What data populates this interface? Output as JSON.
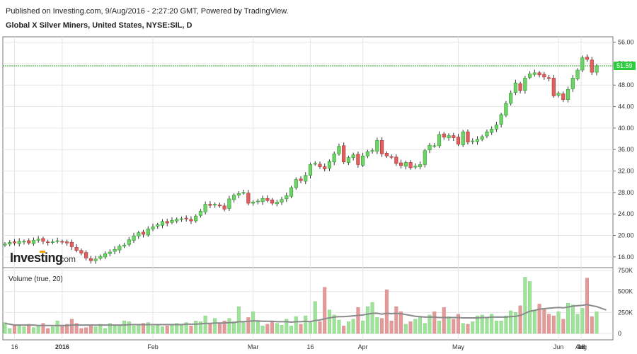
{
  "header": {
    "published": "Published on Investing.com, 9/Aug/2016 - 2:27:20 GMT, Powered by TradingView.",
    "symbol": "Global X Silver Miners, United States, NYSE:SIL, D"
  },
  "logo": {
    "brand": "Investing",
    "suffix": ".com"
  },
  "volume_panel": {
    "label": "Volume (true, 20)"
  },
  "last_price_badge": "51.59",
  "colors": {
    "up": "#6fd36a",
    "down": "#e06060",
    "up_vol": "#9ee39a",
    "down_vol": "#e59a9a",
    "ma": "#8a8a8a",
    "last_line": "#22aa22",
    "badge": "#2ecc40",
    "grid": "#e6e6e6"
  },
  "chart_data": [
    {
      "type": "candlestick",
      "title": "Global X Silver Miners, United States, NYSE:SIL, D",
      "x_tick_labels": [
        "16",
        "2016",
        "Feb",
        "Mar",
        "16",
        "Apr",
        "May",
        "Jun",
        "16",
        "Jul",
        "Aug"
      ],
      "y_ticks": [
        16,
        20,
        24,
        28,
        32,
        36,
        40,
        44,
        48,
        52,
        56
      ],
      "ylim": [
        14.0,
        57.0
      ],
      "last_price": 51.59,
      "close": [
        18.4,
        18.7,
        18.6,
        18.9,
        18.9,
        18.6,
        19.1,
        19.3,
        18.9,
        18.7,
        18.8,
        19.0,
        18.8,
        18.6,
        17.9,
        17.2,
        16.7,
        15.8,
        15.3,
        15.6,
        16.1,
        16.6,
        16.9,
        17.4,
        18.0,
        18.2,
        19.2,
        19.9,
        20.5,
        20.2,
        21.2,
        21.6,
        22.0,
        22.6,
        22.3,
        22.8,
        23.0,
        23.1,
        23.1,
        22.7,
        23.6,
        24.5,
        25.8,
        25.6,
        25.8,
        25.5,
        24.9,
        26.8,
        27.5,
        27.8,
        28.0,
        26.0,
        26.2,
        26.4,
        26.9,
        26.5,
        26.0,
        26.2,
        26.7,
        27.4,
        28.9,
        30.4,
        30.2,
        31.2,
        33.2,
        33.4,
        32.8,
        32.4,
        33.8,
        35.2,
        36.6,
        33.7,
        34.5,
        35.0,
        33.2,
        34.8,
        35.6,
        35.8,
        37.7,
        35.2,
        34.8,
        34.6,
        33.4,
        33.0,
        33.6,
        32.6,
        32.9,
        33.2,
        35.8,
        36.8,
        36.7,
        38.8,
        38.3,
        38.6,
        38.2,
        37.0,
        39.3,
        37.4,
        37.6,
        37.9,
        38.4,
        39.3,
        39.8,
        40.6,
        42.5,
        44.6,
        46.5,
        48.4,
        47.0,
        49.3,
        50.1,
        50.3,
        49.9,
        49.5,
        49.3,
        46.0,
        46.5,
        45.3,
        47.2,
        49.3,
        50.8,
        53.1,
        52.8,
        50.4,
        51.59
      ],
      "volume_panel": {
        "label": "Volume (true, 20)",
        "y_ticks": [
          "0",
          "250K",
          "500K",
          "750K"
        ],
        "ylim": [
          0,
          750000
        ],
        "volume": [
          130000,
          60000,
          90000,
          100000,
          80000,
          110000,
          70000,
          90000,
          120000,
          60000,
          80000,
          150000,
          100000,
          110000,
          170000,
          120000,
          60000,
          70000,
          90000,
          80000,
          110000,
          60000,
          120000,
          90000,
          100000,
          150000,
          140000,
          90000,
          100000,
          120000,
          130000,
          90000,
          110000,
          80000,
          90000,
          110000,
          120000,
          100000,
          130000,
          90000,
          150000,
          140000,
          210000,
          120000,
          180000,
          120000,
          150000,
          180000,
          140000,
          320000,
          130000,
          190000,
          260000,
          140000,
          90000,
          110000,
          150000,
          120000,
          100000,
          170000,
          90000,
          200000,
          110000,
          210000,
          130000,
          380000,
          140000,
          550000,
          280000,
          220000,
          160000,
          90000,
          140000,
          170000,
          310000,
          150000,
          320000,
          370000,
          190000,
          180000,
          520000,
          150000,
          320000,
          260000,
          110000,
          140000,
          170000,
          190000,
          120000,
          220000,
          260000,
          150000,
          310000,
          200000,
          170000,
          230000,
          120000,
          110000,
          140000,
          210000,
          220000,
          190000,
          230000,
          150000,
          150000,
          210000,
          270000,
          250000,
          330000,
          670000,
          620000,
          280000,
          350000,
          290000,
          230000,
          210000,
          260000,
          170000,
          360000,
          340000,
          230000,
          300000,
          660000,
          200000,
          260000,
          180000,
          200000
        ],
        "ma_20": [
          120000,
          110000,
          100000,
          100000,
          100000,
          100000,
          100000,
          95000,
          95000,
          95000,
          95000,
          95000,
          95000,
          95000,
          100000,
          100000,
          100000,
          100000,
          100000,
          100000,
          100000,
          100000,
          100000,
          100000,
          100000,
          100000,
          105000,
          105000,
          105000,
          105000,
          105000,
          105000,
          105000,
          105000,
          105000,
          105000,
          105000,
          105000,
          110000,
          110000,
          110000,
          115000,
          120000,
          120000,
          125000,
          125000,
          125000,
          130000,
          130000,
          140000,
          140000,
          145000,
          150000,
          150000,
          145000,
          145000,
          145000,
          140000,
          140000,
          140000,
          135000,
          140000,
          140000,
          145000,
          140000,
          155000,
          160000,
          175000,
          185000,
          195000,
          200000,
          200000,
          205000,
          210000,
          215000,
          220000,
          230000,
          240000,
          240000,
          230000,
          240000,
          235000,
          240000,
          235000,
          225000,
          215000,
          205000,
          200000,
          195000,
          195000,
          195000,
          190000,
          190000,
          190000,
          190000,
          190000,
          185000,
          185000,
          185000,
          185000,
          190000,
          190000,
          195000,
          195000,
          195000,
          195000,
          200000,
          205000,
          215000,
          240000,
          265000,
          275000,
          290000,
          295000,
          300000,
          305000,
          310000,
          305000,
          315000,
          325000,
          330000,
          335000,
          345000,
          330000,
          320000,
          300000,
          280000
        ]
      }
    }
  ]
}
